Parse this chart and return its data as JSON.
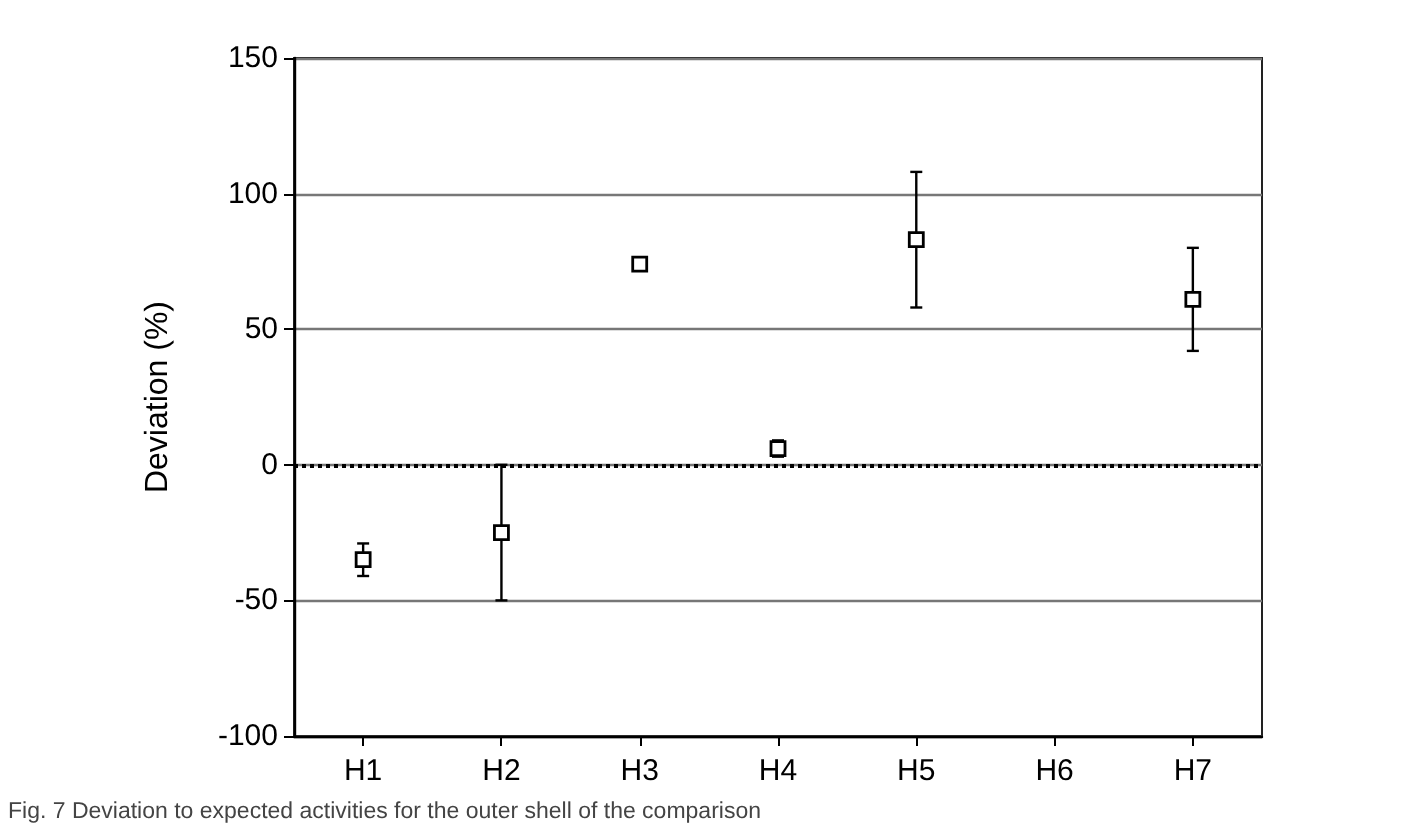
{
  "chart_data": {
    "type": "scatter",
    "ylabel": "Deviation (%)",
    "annotations": [
      "Fig. 7 Deviation to expected activities for the outer shell of the comparison"
    ],
    "categories": [
      "H1",
      "H2",
      "H3",
      "H4",
      "H5",
      "H6",
      "H7"
    ],
    "values": [
      -35,
      -25,
      74,
      6,
      83,
      null,
      61
    ],
    "errors": [
      6,
      25,
      null,
      3,
      25,
      null,
      [
        42,
        80
      ]
    ],
    "color": "#000000",
    "marker": "square",
    "ylim": [
      -100,
      150
    ],
    "yticks": [
      -100,
      -50,
      0,
      50,
      100,
      150
    ],
    "ref_lines": [
      {
        "axis": "y",
        "value": 0,
        "line_style": "dotted",
        "color": "#000000"
      }
    ],
    "grid": "y"
  }
}
